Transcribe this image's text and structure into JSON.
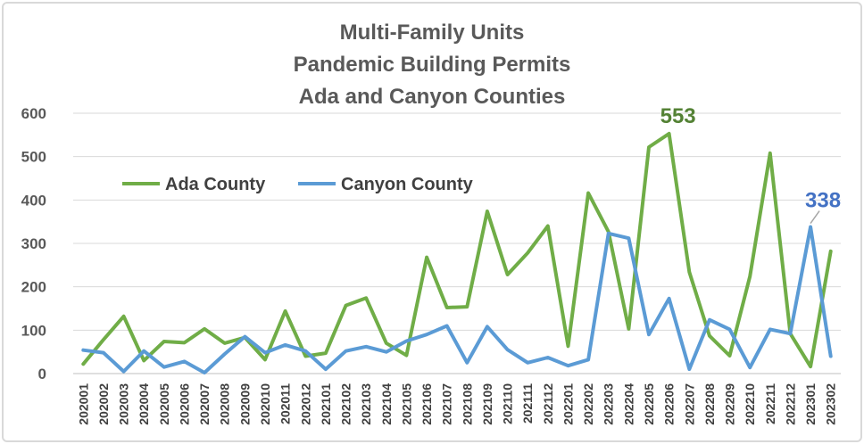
{
  "chart_data": {
    "type": "line",
    "title": [
      "Multi-Family Units",
      "Pandemic Building Permits",
      "Ada and Canyon Counties"
    ],
    "xlabel": "",
    "ylabel": "",
    "ylim": [
      0,
      600
    ],
    "yticks": [
      0,
      100,
      200,
      300,
      400,
      500,
      600
    ],
    "grid": true,
    "legend_position": "upper-left",
    "categories": [
      "202001",
      "202002",
      "202003",
      "202004",
      "202005",
      "202006",
      "202007",
      "202008",
      "202009",
      "202010",
      "202011",
      "202012",
      "202101",
      "202102",
      "202103",
      "202104",
      "202105",
      "202106",
      "202107",
      "202108",
      "202109",
      "202110",
      "202111",
      "202112",
      "202201",
      "202202",
      "202203",
      "202204",
      "202205",
      "202206",
      "202207",
      "202208",
      "202209",
      "202210",
      "202211",
      "202212",
      "202301",
      "202302"
    ],
    "series": [
      {
        "name": "Ada County",
        "color": "#70ad47",
        "values": [
          22,
          78,
          132,
          30,
          74,
          71,
          103,
          70,
          83,
          32,
          144,
          40,
          47,
          157,
          174,
          70,
          42,
          268,
          152,
          154,
          374,
          228,
          278,
          340,
          63,
          416,
          327,
          103,
          522,
          553,
          234,
          87,
          41,
          224,
          508,
          92,
          16,
          282
        ]
      },
      {
        "name": "Canyon County",
        "color": "#5b9bd5",
        "values": [
          54,
          48,
          5,
          52,
          15,
          28,
          2,
          45,
          85,
          48,
          66,
          52,
          10,
          52,
          62,
          50,
          75,
          90,
          110,
          25,
          108,
          55,
          25,
          37,
          18,
          32,
          323,
          312,
          90,
          173,
          10,
          124,
          102,
          14,
          102,
          92,
          338,
          40
        ]
      }
    ],
    "annotations": [
      {
        "text": "553",
        "series": "Ada County",
        "category": "202206",
        "value": 553,
        "color": "#548235"
      },
      {
        "text": "338",
        "series": "Canyon County",
        "category": "202301",
        "value": 338,
        "color": "#4472c4"
      }
    ]
  }
}
